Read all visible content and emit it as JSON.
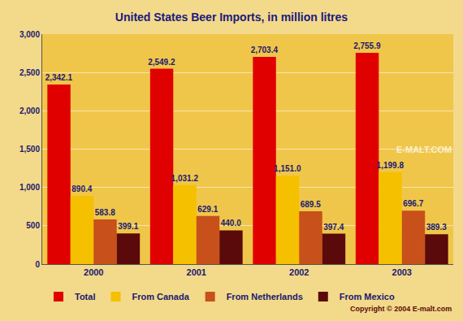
{
  "chart_data": {
    "type": "bar",
    "title": "United States Beer Imports, in million litres",
    "categories": [
      "2000",
      "2001",
      "2002",
      "2003"
    ],
    "series": [
      {
        "name": "Total",
        "color": "#e00000",
        "values": [
          2342.1,
          2549.2,
          2703.4,
          2755.9
        ],
        "value_labels": [
          "2,342.1",
          "2,549.2",
          "2,703.4",
          "2,755.9"
        ]
      },
      {
        "name": "From Canada",
        "color": "#f5c000",
        "values": [
          890.4,
          1031.2,
          1151.0,
          1199.8
        ],
        "value_labels": [
          "890.4",
          "1,031.2",
          "1,151.0",
          "1,199.8"
        ]
      },
      {
        "name": "From Netherlands",
        "color": "#c8501a",
        "values": [
          583.8,
          629.1,
          689.5,
          696.7
        ],
        "value_labels": [
          "583.8",
          "629.1",
          "689.5",
          "696.7"
        ]
      },
      {
        "name": "From Mexico",
        "color": "#5a0a0a",
        "values": [
          399.1,
          440.0,
          397.4,
          389.3
        ],
        "value_labels": [
          "399.1",
          "440.0",
          "397.4",
          "389.3"
        ]
      }
    ],
    "ylim": [
      0,
      3000
    ],
    "yticks": [
      0,
      500,
      {
        "value": 1000,
        "label": "1,000"
      },
      {
        "value": 1500,
        "label": "1,500"
      },
      {
        "value": 2000,
        "label": "2,000"
      },
      {
        "value": 2500,
        "label": "2,500"
      },
      {
        "value": 3000,
        "label": "3,000"
      }
    ],
    "grid": true,
    "legend": "bottom",
    "data_labels": true,
    "annotations": [
      "E-MALT.COM",
      "Copyright © 2004 E-malt.com"
    ]
  }
}
